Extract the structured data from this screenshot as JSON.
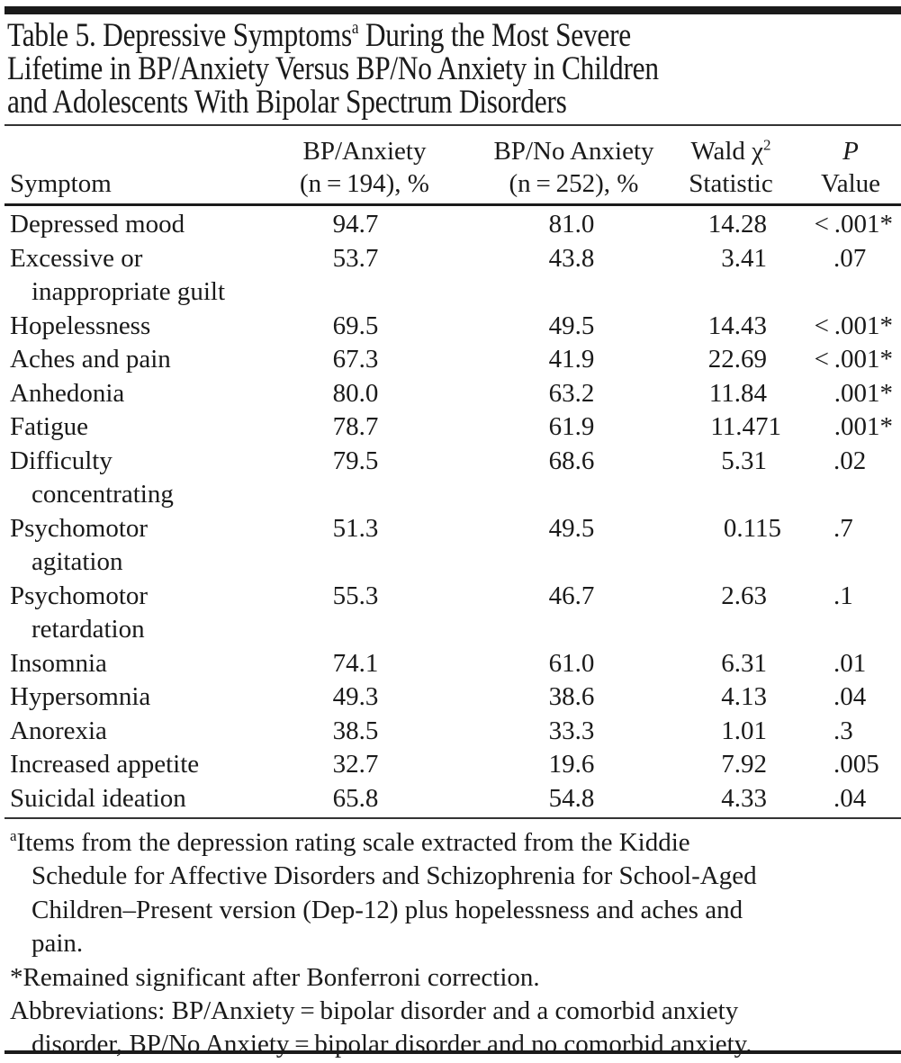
{
  "table": {
    "title_lines": [
      "Table 5. Depressive Symptoms",
      "Lifetime in BP/Anxiety Versus BP/No Anxiety in Children",
      "and Adolescents With Bipolar Spectrum Disorders"
    ],
    "title_sup": "a",
    "title_line1_rest": " During the Most Severe",
    "columns": {
      "symptom": "Symptom",
      "bp_anxiety": [
        "BP/Anxiety",
        "(n = 194), %"
      ],
      "bp_no_anxiety": [
        "BP/No Anxiety",
        "(n = 252), %"
      ],
      "wald": [
        "Wald χ",
        "2",
        "Statistic"
      ],
      "p_value": [
        "P",
        "Value"
      ]
    },
    "rows": [
      {
        "symptom": [
          "Depressed mood"
        ],
        "bp_anxiety": "94.7",
        "bp_no_anxiety": "81.0",
        "wald": "14.28",
        "p": "< .001*"
      },
      {
        "symptom": [
          "Excessive or",
          "inappropriate guilt"
        ],
        "bp_anxiety": "53.7",
        "bp_no_anxiety": "43.8",
        "wald": "3.41",
        "p": ".07"
      },
      {
        "symptom": [
          "Hopelessness"
        ],
        "bp_anxiety": "69.5",
        "bp_no_anxiety": "49.5",
        "wald": "14.43",
        "p": "< .001*"
      },
      {
        "symptom": [
          "Aches and pain"
        ],
        "bp_anxiety": "67.3",
        "bp_no_anxiety": "41.9",
        "wald": "22.69",
        "p": "< .001*"
      },
      {
        "symptom": [
          "Anhedonia"
        ],
        "bp_anxiety": "80.0",
        "bp_no_anxiety": "63.2",
        "wald": "11.84",
        "p": ".001*"
      },
      {
        "symptom": [
          "Fatigue"
        ],
        "bp_anxiety": "78.7",
        "bp_no_anxiety": "61.9",
        "wald": "11.471",
        "p": ".001*"
      },
      {
        "symptom": [
          "Difficulty",
          "concentrating"
        ],
        "bp_anxiety": "79.5",
        "bp_no_anxiety": "68.6",
        "wald": "5.31",
        "p": ".02"
      },
      {
        "symptom": [
          "Psychomotor",
          "agitation"
        ],
        "bp_anxiety": "51.3",
        "bp_no_anxiety": "49.5",
        "wald": "0.115",
        "p": ".7"
      },
      {
        "symptom": [
          "Psychomotor",
          "retardation"
        ],
        "bp_anxiety": "55.3",
        "bp_no_anxiety": "46.7",
        "wald": "2.63",
        "p": ".1"
      },
      {
        "symptom": [
          "Insomnia"
        ],
        "bp_anxiety": "74.1",
        "bp_no_anxiety": "61.0",
        "wald": "6.31",
        "p": ".01"
      },
      {
        "symptom": [
          "Hypersomnia"
        ],
        "bp_anxiety": "49.3",
        "bp_no_anxiety": "38.6",
        "wald": "4.13",
        "p": ".04"
      },
      {
        "symptom": [
          "Anorexia"
        ],
        "bp_anxiety": "38.5",
        "bp_no_anxiety": "33.3",
        "wald": "1.01",
        "p": ".3"
      },
      {
        "symptom": [
          "Increased appetite"
        ],
        "bp_anxiety": "32.7",
        "bp_no_anxiety": "19.6",
        "wald": "7.92",
        "p": ".005"
      },
      {
        "symptom": [
          "Suicidal ideation"
        ],
        "bp_anxiety": "65.8",
        "bp_no_anxiety": "54.8",
        "wald": "4.33",
        "p": ".04"
      }
    ],
    "footnotes": {
      "a_marker": "a",
      "a_lines": [
        "Items from the depression rating scale extracted from the Kiddie",
        "Schedule for Affective Disorders and Schizophrenia for School-Aged",
        "Children–Present version (Dep-12) plus hopelessness and aches and",
        "pain."
      ],
      "star": "*Remained significant after Bonferroni correction.",
      "abbrev_lines": [
        "Abbreviations: BP/Anxiety = bipolar disorder and a comorbid anxiety",
        "disorder, BP/No Anxiety = bipolar disorder and no comorbid anxiety."
      ]
    }
  }
}
